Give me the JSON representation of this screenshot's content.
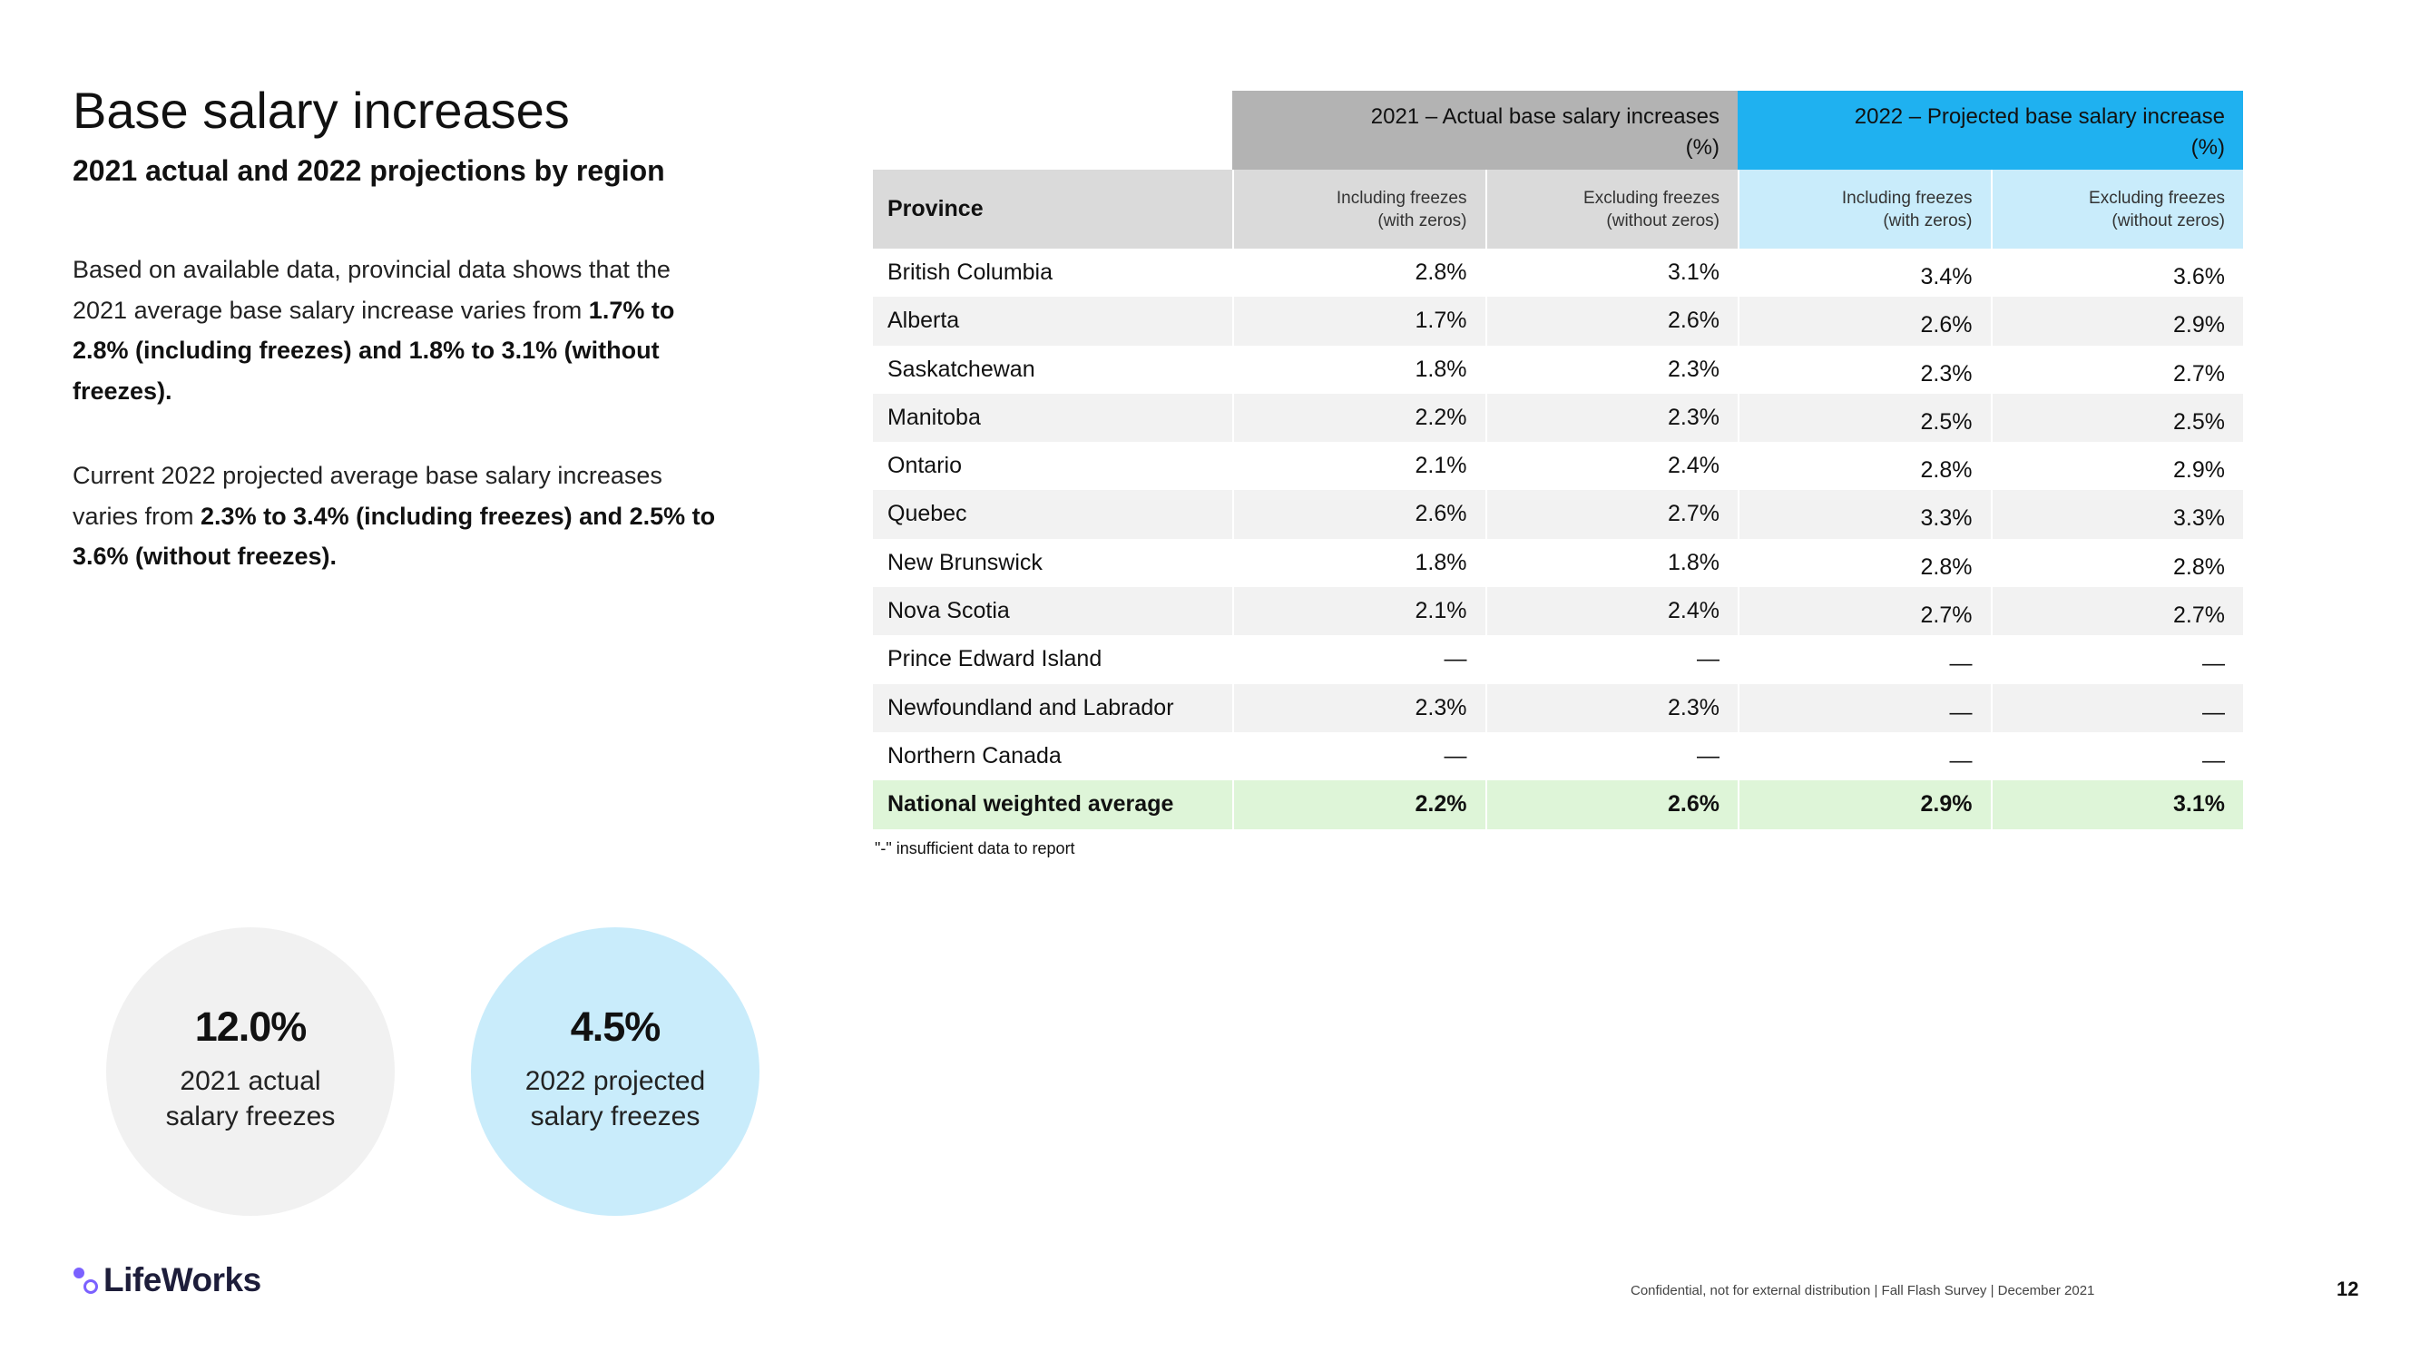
{
  "header": {
    "title": "Base salary increases",
    "subtitle": "2021 actual and 2022 projections by region"
  },
  "body": {
    "p1_a": "Based on available data, provincial data shows that the 2021 average base salary increase varies from ",
    "p1_b": "1.7% to 2.8%  (including freezes) and 1.8% to 3.1% (without freezes).",
    "p2_a": "Current 2022 projected average base salary increases varies from ",
    "p2_b": "2.3% to 3.4% (including freezes) and 2.5% to 3.6% (without freezes)."
  },
  "stats": [
    {
      "value": "12.0%",
      "line1": "2021 actual",
      "line2": "salary freezes"
    },
    {
      "value": "4.5%",
      "line1": "2022 projected",
      "line2": "salary freezes"
    }
  ],
  "table": {
    "group_2021_line1": "2021 – Actual base salary increases",
    "group_2021_line2": "(%)",
    "group_2022_line1": "2022 – Projected base salary increase",
    "group_2022_line2": "(%)",
    "col_province": "Province",
    "col_incl_line1": "Including freezes",
    "col_incl_line2": "(with zeros)",
    "col_excl_line1": "Excluding freezes",
    "col_excl_line2": "(without zeros)",
    "rows": [
      [
        "British Columbia",
        "2.8%",
        "3.1%",
        "3.4%",
        "3.6%"
      ],
      [
        "Alberta",
        "1.7%",
        "2.6%",
        "2.6%",
        "2.9%"
      ],
      [
        "Saskatchewan",
        "1.8%",
        "2.3%",
        "2.3%",
        "2.7%"
      ],
      [
        "Manitoba",
        "2.2%",
        "2.3%",
        "2.5%",
        "2.5%"
      ],
      [
        "Ontario",
        "2.1%",
        "2.4%",
        "2.8%",
        "2.9%"
      ],
      [
        "Quebec",
        "2.6%",
        "2.7%",
        "3.3%",
        "3.3%"
      ],
      [
        "New Brunswick",
        "1.8%",
        "1.8%",
        "2.8%",
        "2.8%"
      ],
      [
        "Nova Scotia",
        "2.1%",
        "2.4%",
        "2.7%",
        "2.7%"
      ],
      [
        "Prince Edward Island",
        "—",
        "—",
        "—",
        "—"
      ],
      [
        "Newfoundland and Labrador",
        "2.3%",
        "2.3%",
        "—",
        "—"
      ],
      [
        "Northern Canada",
        "—",
        "—",
        "—",
        "—"
      ]
    ],
    "average": [
      "National weighted average",
      "2.2%",
      "2.6%",
      "2.9%",
      "3.1%"
    ],
    "note": "\"-\" insufficient data to report"
  },
  "footer": {
    "logo_text": "LifeWorks",
    "note": "Confidential, not for external distribution  | Fall Flash Survey  | December 2021",
    "page": "12"
  },
  "colors": {
    "actual_header": "#b3b3b3",
    "projected_header": "#1fb1f0",
    "projected_subheader": "#c9ecfb",
    "average_row": "#def5d8",
    "logo_purple": "#7b61ff"
  }
}
